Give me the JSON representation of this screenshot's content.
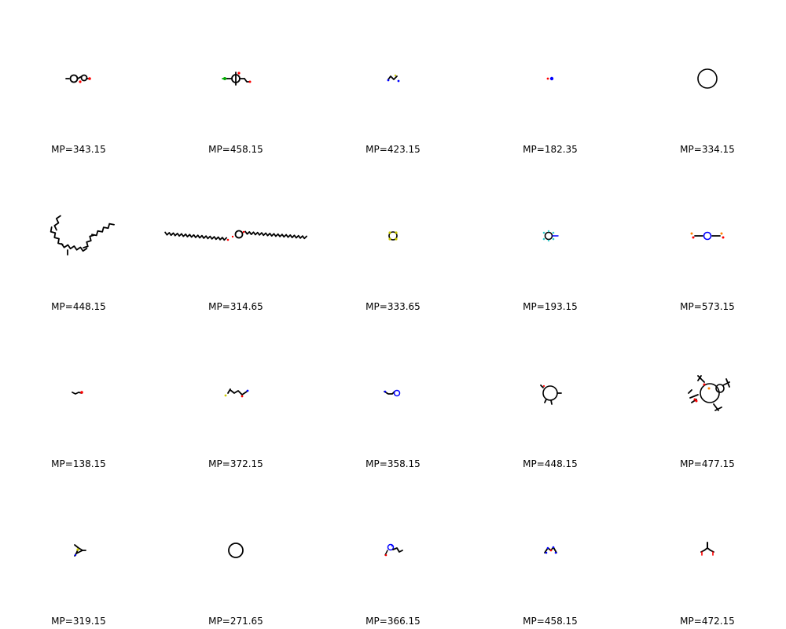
{
  "grid": {
    "rows": 4,
    "cols": 5,
    "molecules": [
      {
        "label": "MP=343.15",
        "shape": "para-substituted-benzene"
      },
      {
        "label": "MP=458.15",
        "shape": "substituted-benzene"
      },
      {
        "label": "MP=423.15",
        "shape": "small-amine"
      },
      {
        "label": "MP=182.35",
        "shape": "diatomic"
      },
      {
        "label": "MP=334.15",
        "shape": "macrocycle"
      },
      {
        "label": "MP=448.15",
        "shape": "long-chain-u-shaped"
      },
      {
        "label": "MP=314.65",
        "shape": "ring-with-two-long-chains"
      },
      {
        "label": "MP=333.65",
        "shape": "sulfur-ring"
      },
      {
        "label": "MP=193.15",
        "shape": "fluorinated-ring"
      },
      {
        "label": "MP=573.15",
        "shape": "ring-with-sulfonate-groups"
      },
      {
        "label": "MP=138.15",
        "shape": "short-alkyl-alcohol"
      },
      {
        "label": "MP=372.15",
        "shape": "thioether-chain"
      },
      {
        "label": "MP=358.15",
        "shape": "pyridine-derivative"
      },
      {
        "label": "MP=448.15",
        "shape": "ring-with-methyls"
      },
      {
        "label": "MP=477.15",
        "shape": "bulky-polycyclic"
      },
      {
        "label": "MP=319.15",
        "shape": "thiazole"
      },
      {
        "label": "MP=271.65",
        "shape": "cyclic"
      },
      {
        "label": "MP=366.15",
        "shape": "nitrogen-heterocycle"
      },
      {
        "label": "MP=458.15",
        "shape": "small-nitrogen-compound"
      },
      {
        "label": "MP=472.15",
        "shape": "small-oxygenated"
      }
    ]
  },
  "colors": {
    "bond": "#000000",
    "oxygen": "#ff0000",
    "nitrogen": "#0000ff",
    "sulfur": "#cccc00",
    "fluorine": "#33cccc",
    "chlorine": "#00aa00",
    "phosphorus": "#ff8000",
    "label": "#000000"
  }
}
